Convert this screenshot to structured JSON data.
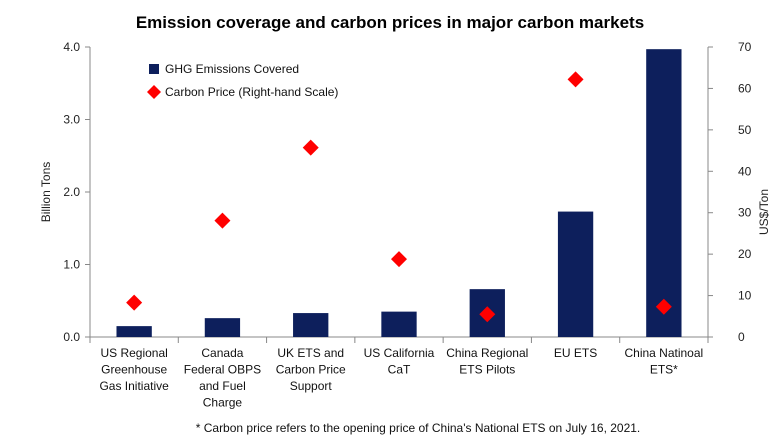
{
  "chart_data": {
    "type": "bar",
    "title": "Emission coverage and carbon prices in major carbon markets",
    "categories": [
      [
        "US Regional",
        "Greenhouse",
        "Gas Initiative"
      ],
      [
        "Canada",
        "Federal OBPS",
        "and Fuel",
        "Charge"
      ],
      [
        "UK ETS and",
        "Carbon Price",
        "Support"
      ],
      [
        "US California",
        "CaT"
      ],
      [
        "China Regional",
        "ETS Pilots"
      ],
      [
        "EU ETS"
      ],
      [
        "China Natinoal",
        "ETS*"
      ]
    ],
    "series": [
      {
        "name": "GHG Emissions Covered",
        "kind": "bar",
        "axis": "left",
        "color": "#0d1f5c",
        "values": [
          0.15,
          0.26,
          0.33,
          0.35,
          0.66,
          1.73,
          3.97
        ]
      },
      {
        "name": "Carbon Price (Right-hand Scale)",
        "kind": "point",
        "marker": "diamond",
        "axis": "right",
        "color": "#ff0000",
        "values": [
          8.3,
          28.1,
          45.7,
          18.8,
          5.5,
          62.2,
          7.3
        ]
      }
    ],
    "ylabel": "Billion Tons",
    "y2label": "US$/Ton",
    "ylim": [
      0,
      4
    ],
    "y2lim": [
      0,
      70
    ],
    "yticks": [
      "0.0",
      "1.0",
      "2.0",
      "3.0",
      "4.0"
    ],
    "y2ticks": [
      "0",
      "10",
      "20",
      "30",
      "40",
      "50",
      "60",
      "70"
    ],
    "legend_position": "top-left",
    "grid": false
  },
  "footnote": "* Carbon price refers to the opening price of China's National ETS on July 16, 2021."
}
